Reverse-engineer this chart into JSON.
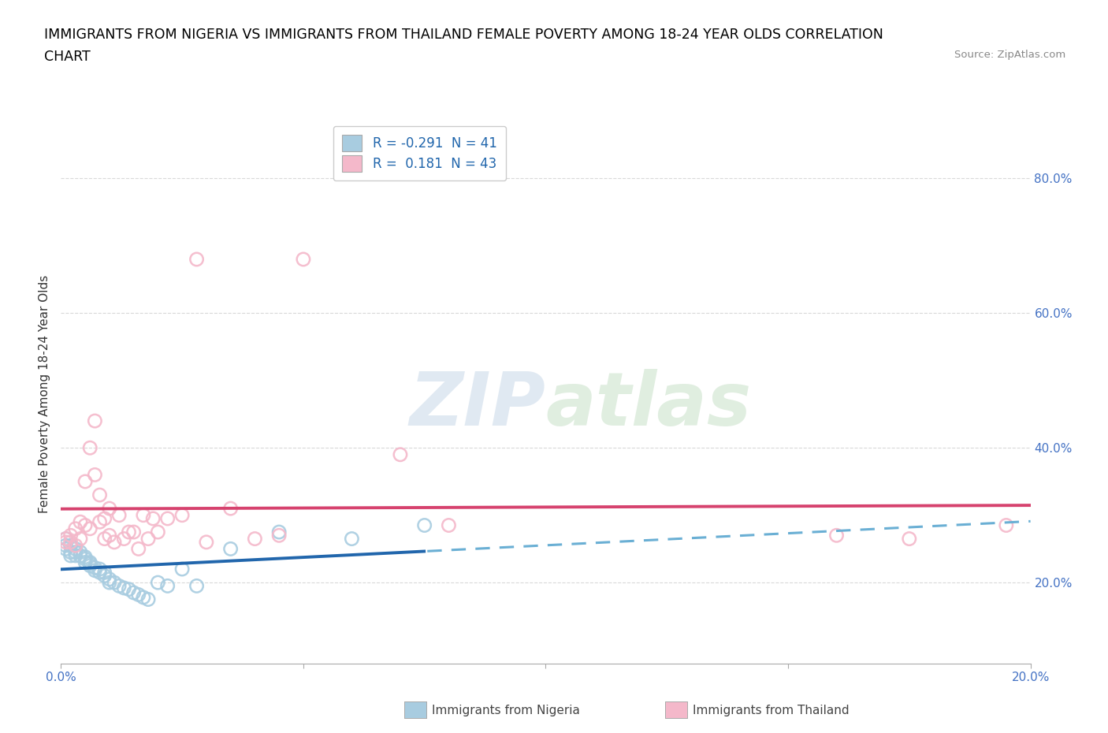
{
  "title_line1": "IMMIGRANTS FROM NIGERIA VS IMMIGRANTS FROM THAILAND FEMALE POVERTY AMONG 18-24 YEAR OLDS CORRELATION",
  "title_line2": "CHART",
  "source_text": "Source: ZipAtlas.com",
  "ylabel": "Female Poverty Among 18-24 Year Olds",
  "xlabel_nigeria": "Immigrants from Nigeria",
  "xlabel_thailand": "Immigrants from Thailand",
  "xlim": [
    0.0,
    0.2
  ],
  "ylim": [
    0.08,
    0.88
  ],
  "ytick_vals": [
    0.2,
    0.4,
    0.6,
    0.8
  ],
  "ytick_labels": [
    "20.0%",
    "40.0%",
    "60.0%",
    "80.0%"
  ],
  "xtick_vals": [
    0.0,
    0.05,
    0.1,
    0.15,
    0.2
  ],
  "xtick_labels": [
    "0.0%",
    "",
    "",
    "",
    "20.0%"
  ],
  "R_nigeria": -0.291,
  "N_nigeria": 41,
  "R_thailand": 0.181,
  "N_thailand": 43,
  "color_nigeria": "#a8cce0",
  "color_thailand": "#f4b8ca",
  "trendline_nigeria_solid_color": "#2166ac",
  "trendline_nigeria_dash_color": "#6aafd4",
  "trendline_thailand_color": "#d6426e",
  "watermark_text": "ZIPatlas",
  "nigeria_scatter_x": [
    0.001,
    0.001,
    0.001,
    0.002,
    0.002,
    0.002,
    0.003,
    0.003,
    0.003,
    0.004,
    0.004,
    0.005,
    0.005,
    0.005,
    0.006,
    0.006,
    0.006,
    0.007,
    0.007,
    0.008,
    0.008,
    0.009,
    0.009,
    0.01,
    0.01,
    0.011,
    0.012,
    0.013,
    0.014,
    0.015,
    0.016,
    0.017,
    0.018,
    0.02,
    0.022,
    0.025,
    0.028,
    0.035,
    0.045,
    0.06,
    0.075
  ],
  "nigeria_scatter_y": [
    0.265,
    0.255,
    0.25,
    0.255,
    0.245,
    0.24,
    0.25,
    0.245,
    0.24,
    0.245,
    0.24,
    0.238,
    0.235,
    0.23,
    0.23,
    0.225,
    0.228,
    0.222,
    0.218,
    0.22,
    0.215,
    0.215,
    0.21,
    0.205,
    0.2,
    0.2,
    0.195,
    0.192,
    0.19,
    0.185,
    0.182,
    0.178,
    0.175,
    0.2,
    0.195,
    0.22,
    0.195,
    0.25,
    0.275,
    0.265,
    0.285
  ],
  "thailand_scatter_x": [
    0.001,
    0.001,
    0.002,
    0.002,
    0.003,
    0.003,
    0.004,
    0.004,
    0.005,
    0.005,
    0.006,
    0.006,
    0.007,
    0.007,
    0.008,
    0.008,
    0.009,
    0.009,
    0.01,
    0.01,
    0.011,
    0.012,
    0.013,
    0.014,
    0.015,
    0.016,
    0.017,
    0.018,
    0.019,
    0.02,
    0.022,
    0.025,
    0.028,
    0.03,
    0.035,
    0.04,
    0.045,
    0.05,
    0.07,
    0.08,
    0.16,
    0.175,
    0.195
  ],
  "thailand_scatter_y": [
    0.265,
    0.26,
    0.27,
    0.26,
    0.28,
    0.255,
    0.29,
    0.265,
    0.285,
    0.35,
    0.4,
    0.28,
    0.44,
    0.36,
    0.33,
    0.29,
    0.295,
    0.265,
    0.27,
    0.31,
    0.26,
    0.3,
    0.265,
    0.275,
    0.275,
    0.25,
    0.3,
    0.265,
    0.295,
    0.275,
    0.295,
    0.3,
    0.68,
    0.26,
    0.31,
    0.265,
    0.27,
    0.68,
    0.39,
    0.285,
    0.27,
    0.265,
    0.285
  ],
  "bg_color": "#ffffff",
  "grid_color": "#d0d0d0",
  "tick_label_color": "#4472c4",
  "title_color": "#000000",
  "title_fontsize": 12.5
}
